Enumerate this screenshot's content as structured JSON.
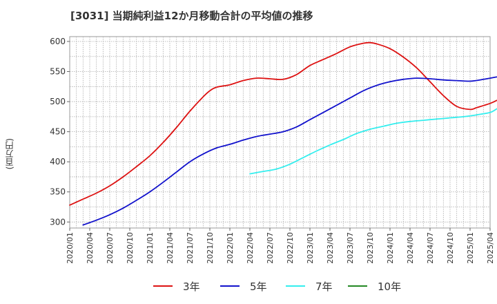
{
  "chart_data": {
    "type": "line",
    "title": "[3031]  当期純利益12か月移動合計の平均値の推移",
    "ylabel": "(百万円)",
    "xlabel": "",
    "ylim": [
      290,
      608
    ],
    "yticks": [
      300,
      350,
      400,
      450,
      500,
      550,
      600
    ],
    "xlim": [
      "2020/01",
      "2025/04"
    ],
    "xticks": [
      "2020/01",
      "2020/04",
      "2020/07",
      "2020/10",
      "2021/01",
      "2021/04",
      "2021/07",
      "2021/10",
      "2022/01",
      "2022/04",
      "2022/07",
      "2022/10",
      "2023/01",
      "2023/04",
      "2023/07",
      "2023/10",
      "2024/01",
      "2024/04",
      "2024/07",
      "2024/10",
      "2025/01",
      "2025/04"
    ],
    "grid": true,
    "legend_position": "bottom",
    "series": [
      {
        "name": "3年",
        "color": "#dd1111",
        "points": [
          [
            "2020/01",
            328
          ],
          [
            "2020/03",
            338
          ],
          [
            "2020/05",
            348
          ],
          [
            "2020/07",
            360
          ],
          [
            "2020/09",
            375
          ],
          [
            "2020/11",
            392
          ],
          [
            "2021/01",
            410
          ],
          [
            "2021/03",
            432
          ],
          [
            "2021/05",
            457
          ],
          [
            "2021/07",
            484
          ],
          [
            "2021/09",
            508
          ],
          [
            "2021/10",
            518
          ],
          [
            "2021/11",
            524
          ],
          [
            "2022/01",
            528
          ],
          [
            "2022/03",
            535
          ],
          [
            "2022/05",
            539
          ],
          [
            "2022/07",
            538
          ],
          [
            "2022/09",
            537
          ],
          [
            "2022/11",
            545
          ],
          [
            "2023/01",
            560
          ],
          [
            "2023/03",
            570
          ],
          [
            "2023/05",
            580
          ],
          [
            "2023/07",
            591
          ],
          [
            "2023/09",
            597
          ],
          [
            "2023/10",
            598
          ],
          [
            "2023/11",
            596
          ],
          [
            "2024/01",
            588
          ],
          [
            "2024/03",
            574
          ],
          [
            "2024/05",
            556
          ],
          [
            "2024/07",
            533
          ],
          [
            "2024/09",
            510
          ],
          [
            "2024/11",
            492
          ],
          [
            "2025/01",
            487
          ],
          [
            "2025/02",
            490
          ],
          [
            "2025/04",
            497
          ],
          [
            "2025/05",
            502
          ]
        ]
      },
      {
        "name": "5年",
        "color": "#1111cc",
        "points": [
          [
            "2020/03",
            295
          ],
          [
            "2020/05",
            303
          ],
          [
            "2020/07",
            312
          ],
          [
            "2020/09",
            323
          ],
          [
            "2020/11",
            336
          ],
          [
            "2021/01",
            350
          ],
          [
            "2021/03",
            366
          ],
          [
            "2021/05",
            383
          ],
          [
            "2021/07",
            400
          ],
          [
            "2021/09",
            413
          ],
          [
            "2021/11",
            423
          ],
          [
            "2022/01",
            429
          ],
          [
            "2022/03",
            436
          ],
          [
            "2022/05",
            442
          ],
          [
            "2022/07",
            446
          ],
          [
            "2022/09",
            450
          ],
          [
            "2022/11",
            458
          ],
          [
            "2023/01",
            470
          ],
          [
            "2023/03",
            482
          ],
          [
            "2023/05",
            494
          ],
          [
            "2023/07",
            506
          ],
          [
            "2023/09",
            518
          ],
          [
            "2023/11",
            527
          ],
          [
            "2024/01",
            533
          ],
          [
            "2024/03",
            537
          ],
          [
            "2024/05",
            539
          ],
          [
            "2024/07",
            538
          ],
          [
            "2024/09",
            536
          ],
          [
            "2024/11",
            535
          ],
          [
            "2025/01",
            534
          ],
          [
            "2025/03",
            537
          ],
          [
            "2025/05",
            541
          ]
        ]
      },
      {
        "name": "7年",
        "color": "#33eeee",
        "points": [
          [
            "2022/04",
            380
          ],
          [
            "2022/06",
            384
          ],
          [
            "2022/08",
            388
          ],
          [
            "2022/10",
            396
          ],
          [
            "2022/12",
            407
          ],
          [
            "2023/02",
            418
          ],
          [
            "2023/04",
            428
          ],
          [
            "2023/06",
            437
          ],
          [
            "2023/08",
            447
          ],
          [
            "2023/10",
            454
          ],
          [
            "2023/12",
            459
          ],
          [
            "2024/02",
            464
          ],
          [
            "2024/04",
            467
          ],
          [
            "2024/06",
            469
          ],
          [
            "2024/08",
            471
          ],
          [
            "2024/10",
            473
          ],
          [
            "2024/12",
            475
          ],
          [
            "2025/02",
            478
          ],
          [
            "2025/04",
            482
          ],
          [
            "2025/05",
            488
          ]
        ]
      },
      {
        "name": "10年",
        "color": "#228822",
        "points": []
      }
    ]
  }
}
